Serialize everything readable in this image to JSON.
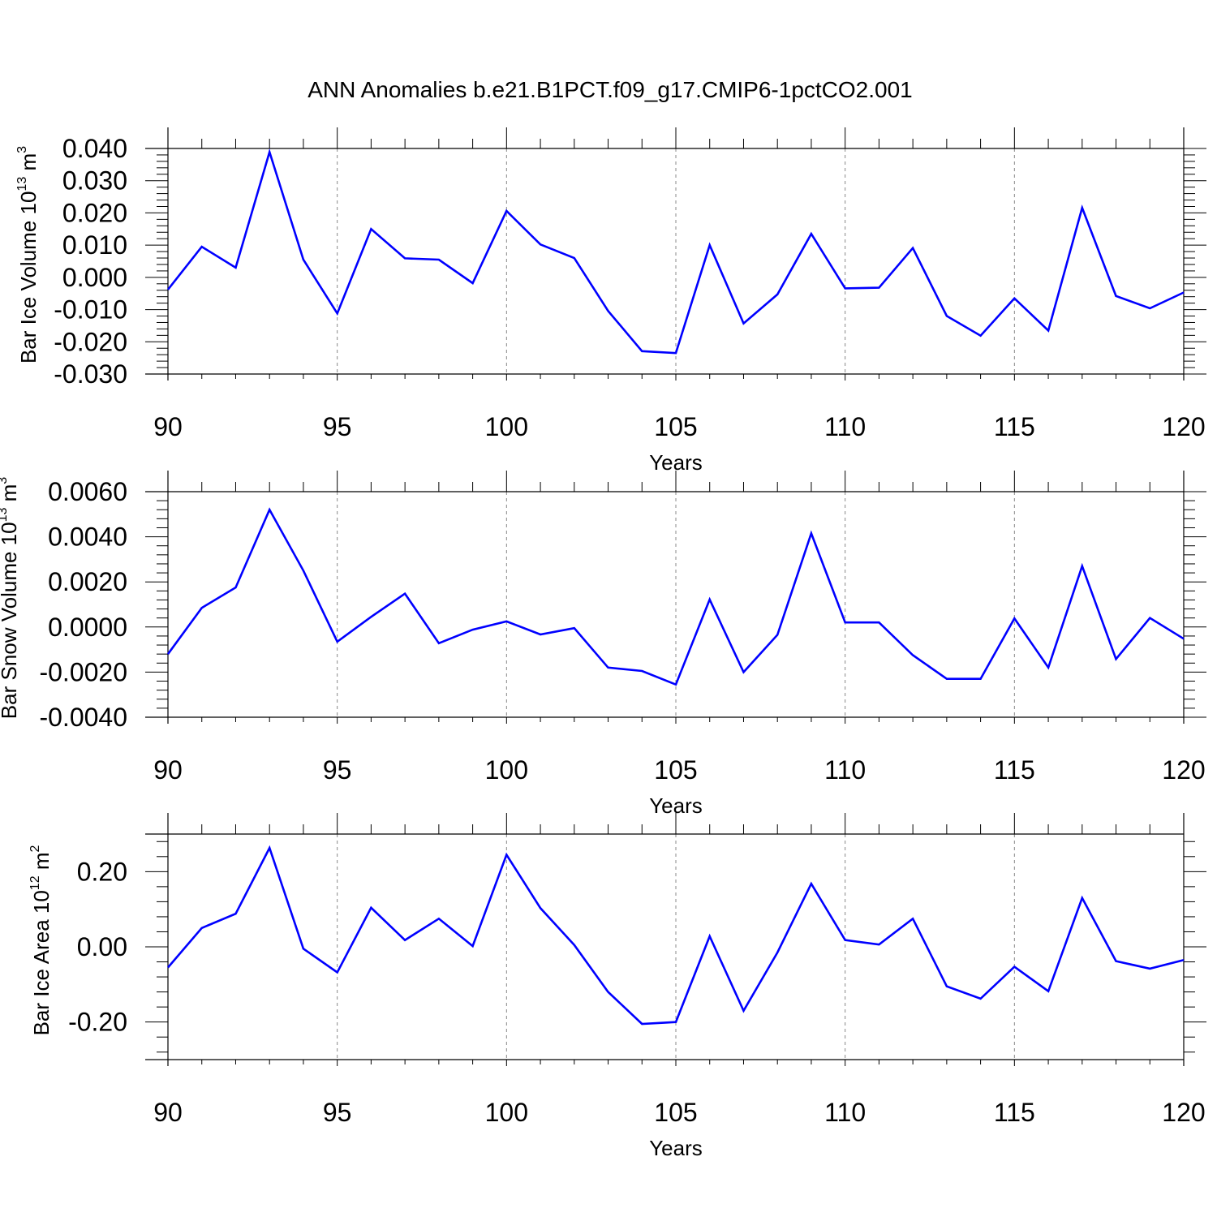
{
  "title": "ANN Anomalies b.e21.B1PCT.f09_g17.CMIP6-1pctCO2.001",
  "line_color": "#0000ff",
  "chart_data": [
    {
      "type": "line",
      "ylabel": {
        "text": "Bar Ice Volume 10",
        "exp": "13",
        "unit": " m",
        "unit_exp": "3"
      },
      "xlabel": "Years",
      "xlim": [
        90,
        120
      ],
      "ylim": [
        -0.03,
        0.04
      ],
      "xticks": [
        "90",
        "95",
        "100",
        "105",
        "110",
        "115",
        "120"
      ],
      "yticks": [
        {
          "v": 0.04,
          "label": "0.040"
        },
        {
          "v": 0.03,
          "label": "0.030"
        },
        {
          "v": 0.02,
          "label": "0.020"
        },
        {
          "v": 0.01,
          "label": "0.010"
        },
        {
          "v": 0.0,
          "label": "0.000"
        },
        {
          "v": -0.01,
          "label": "-0.010"
        },
        {
          "v": -0.02,
          "label": "-0.020"
        },
        {
          "v": -0.03,
          "label": "-0.030"
        }
      ],
      "grid": "dashed vertical at major x ticks",
      "x": [
        90,
        91,
        92,
        93,
        94,
        95,
        96,
        97,
        98,
        99,
        100,
        101,
        102,
        103,
        104,
        105,
        106,
        107,
        108,
        109,
        110,
        111,
        112,
        113,
        114,
        115,
        116,
        117,
        118,
        119,
        120
      ],
      "values": [
        -0.0038,
        0.0095,
        0.003,
        0.0389,
        0.0055,
        -0.0112,
        0.015,
        0.0059,
        0.0055,
        -0.0018,
        0.0206,
        0.0102,
        0.006,
        -0.0104,
        -0.0229,
        -0.0235,
        0.01,
        -0.0143,
        -0.0053,
        0.0135,
        -0.0034,
        -0.0032,
        0.0091,
        -0.012,
        -0.0181,
        -0.0065,
        -0.0165,
        0.0216,
        -0.0058,
        -0.0096,
        -0.0047
      ]
    },
    {
      "type": "line",
      "ylabel": {
        "text": "Bar Snow Volume 10",
        "exp": "13",
        "unit": " m",
        "unit_exp": "3"
      },
      "xlabel": "Years",
      "xlim": [
        90,
        120
      ],
      "ylim": [
        -0.004,
        0.006
      ],
      "xticks": [
        "90",
        "95",
        "100",
        "105",
        "110",
        "115",
        "120"
      ],
      "yticks": [
        {
          "v": 0.006,
          "label": "0.0060"
        },
        {
          "v": 0.004,
          "label": "0.0040"
        },
        {
          "v": 0.002,
          "label": "0.0020"
        },
        {
          "v": 0.0,
          "label": "0.0000"
        },
        {
          "v": -0.002,
          "label": "-0.0020"
        },
        {
          "v": -0.004,
          "label": "-0.0040"
        }
      ],
      "grid": "dashed vertical at major x ticks",
      "x": [
        90,
        91,
        92,
        93,
        94,
        95,
        96,
        97,
        98,
        99,
        100,
        101,
        102,
        103,
        104,
        105,
        106,
        107,
        108,
        109,
        110,
        111,
        112,
        113,
        114,
        115,
        116,
        117,
        118,
        119,
        120
      ],
      "values": [
        -0.0012,
        0.00085,
        0.00175,
        0.0052,
        0.0025,
        -0.00065,
        0.00045,
        0.00148,
        -0.00072,
        -0.00012,
        0.00025,
        -0.00033,
        -5e-05,
        -0.0018,
        -0.00195,
        -0.00255,
        0.00122,
        -0.002,
        -0.00035,
        0.00415,
        0.0002,
        0.0002,
        -0.00125,
        -0.0023,
        -0.0023,
        0.00038,
        -0.0018,
        0.0027,
        -0.00142,
        0.0004,
        -0.00052
      ]
    },
    {
      "type": "line",
      "ylabel": {
        "text": "Bar Ice Area 10",
        "exp": "12",
        "unit": " m",
        "unit_exp": "2"
      },
      "xlabel": "Years",
      "xlim": [
        90,
        120
      ],
      "ylim": [
        -0.3,
        0.3
      ],
      "xticks": [
        "90",
        "95",
        "100",
        "105",
        "110",
        "115",
        "120"
      ],
      "yticks": [
        {
          "v": 0.2,
          "label": "0.20"
        },
        {
          "v": 0.0,
          "label": "0.00"
        },
        {
          "v": -0.2,
          "label": "-0.20"
        }
      ],
      "grid": "dashed vertical at major x ticks",
      "x": [
        90,
        91,
        92,
        93,
        94,
        95,
        96,
        97,
        98,
        99,
        100,
        101,
        102,
        103,
        104,
        105,
        106,
        107,
        108,
        109,
        110,
        111,
        112,
        113,
        114,
        115,
        116,
        117,
        118,
        119,
        120
      ],
      "values": [
        -0.055,
        0.05,
        0.088,
        0.263,
        -0.005,
        -0.068,
        0.104,
        0.018,
        0.075,
        0.002,
        0.245,
        0.103,
        0.005,
        -0.12,
        -0.205,
        -0.2,
        0.028,
        -0.17,
        -0.015,
        0.168,
        0.018,
        0.006,
        0.075,
        -0.105,
        -0.138,
        -0.053,
        -0.118,
        0.13,
        -0.038,
        -0.058,
        -0.035
      ]
    }
  ]
}
